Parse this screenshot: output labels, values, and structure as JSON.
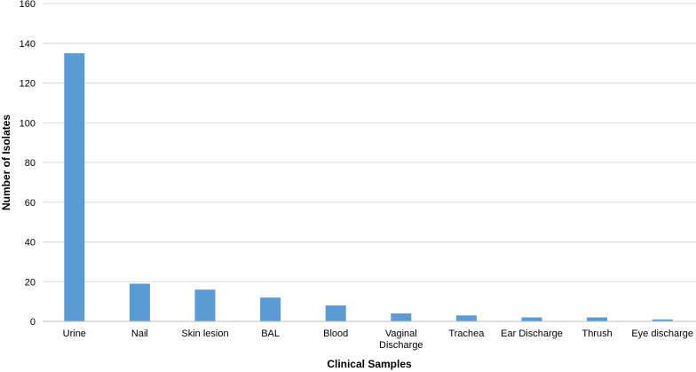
{
  "chart_data": {
    "type": "bar",
    "title": "",
    "xlabel": "Clinical Samples",
    "ylabel": "Number of Isolates",
    "ylim": [
      0,
      160
    ],
    "yticks": [
      0,
      20,
      40,
      60,
      80,
      100,
      120,
      140,
      160
    ],
    "grid": true,
    "legend": "none",
    "bar_color": "#5b9bd5",
    "categories": [
      [
        "Urine"
      ],
      [
        "Nail"
      ],
      [
        "Skin lesion"
      ],
      [
        "BAL"
      ],
      [
        "Blood"
      ],
      [
        "Vaginal",
        "Discharge"
      ],
      [
        "Trachea"
      ],
      [
        "Ear Discharge"
      ],
      [
        "Thrush"
      ],
      [
        "Eye discharge"
      ]
    ],
    "values": [
      135,
      19,
      16,
      12,
      8,
      4,
      3,
      2,
      2,
      1
    ]
  }
}
